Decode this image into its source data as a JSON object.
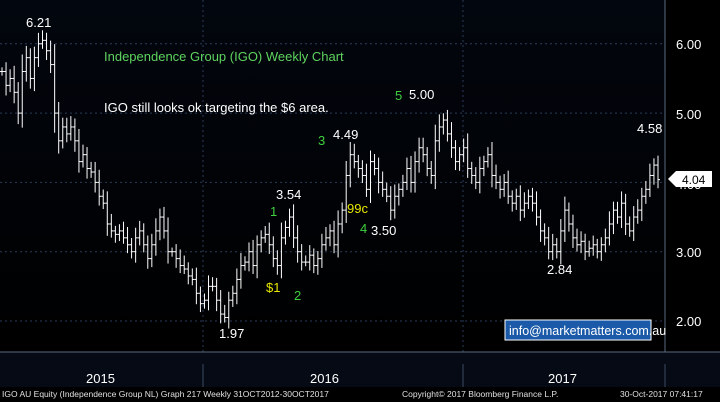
{
  "colors": {
    "background": "#000000",
    "price_bars": "#ffffff",
    "title_green": "#5fd35f",
    "wave_green": "#3fcf3f",
    "wave_yellow": "#e8e800",
    "grid": "#2a3c5a",
    "axis_text": "#ffffff",
    "last_price_bg": "#ffffff",
    "last_price_text": "#000000",
    "email_box_bg": "#1a5aa8"
  },
  "chart_data": {
    "type": "ohlc",
    "title": "Independence Group (IGO) Weekly Chart",
    "subtitle": "IGO still looks ok targeting the $6 area.",
    "yticks": [
      "2.00",
      "3.00",
      "4.00",
      "5.00",
      "6.00"
    ],
    "ylim": [
      1.55,
      6.6
    ],
    "xticks": [
      "2015",
      "2016",
      "2017"
    ],
    "last_price": "4.04",
    "grid": true,
    "bar_closes": [
      5.6,
      5.4,
      5.5,
      5.3,
      5.0,
      5.6,
      5.8,
      5.5,
      5.8,
      6.0,
      6.05,
      5.9,
      5.7,
      5.0,
      4.6,
      4.8,
      4.7,
      4.8,
      4.6,
      4.3,
      4.4,
      4.2,
      4.15,
      4.0,
      3.8,
      3.7,
      3.4,
      3.3,
      3.25,
      3.3,
      3.2,
      3.1,
      3.0,
      3.2,
      3.3,
      3.1,
      2.9,
      3.1,
      3.3,
      3.5,
      3.3,
      3.0,
      3.0,
      2.9,
      2.8,
      2.75,
      2.65,
      2.6,
      2.4,
      2.25,
      2.3,
      2.5,
      2.5,
      2.3,
      2.1,
      2.05,
      2.3,
      2.4,
      2.6,
      2.8,
      2.85,
      3.0,
      2.8,
      3.1,
      3.2,
      3.25,
      3.1,
      2.9,
      2.8,
      3.2,
      3.35,
      3.5,
      3.2,
      3.0,
      2.85,
      2.85,
      2.95,
      2.8,
      2.9,
      3.1,
      3.2,
      3.3,
      3.1,
      3.4,
      3.6,
      4.1,
      4.4,
      4.3,
      4.2,
      4.1,
      3.9,
      4.3,
      4.2,
      4.0,
      3.9,
      3.8,
      3.6,
      3.8,
      3.9,
      4.0,
      4.2,
      4.0,
      4.3,
      4.5,
      4.4,
      4.2,
      4.1,
      4.6,
      4.8,
      4.9,
      4.7,
      4.5,
      4.3,
      4.4,
      4.5,
      4.2,
      4.1,
      4.0,
      4.2,
      4.3,
      4.4,
      4.1,
      4.0,
      3.9,
      4.0,
      3.8,
      3.7,
      3.8,
      3.6,
      3.7,
      3.8,
      3.7,
      3.5,
      3.3,
      3.2,
      3.0,
      3.1,
      3.0,
      3.3,
      3.6,
      3.4,
      3.2,
      3.1,
      3.15,
      3.0,
      3.05,
      3.1,
      3.0,
      3.1,
      3.2,
      3.4,
      3.6,
      3.5,
      3.7,
      3.4,
      3.3,
      3.5,
      3.6,
      3.8,
      3.9,
      4.1,
      4.25,
      4.04
    ],
    "annotations": [
      {
        "text": "6.21",
        "value": 6.21,
        "kind": "price"
      },
      {
        "text": "3.54",
        "value": 3.54,
        "kind": "price"
      },
      {
        "text": "1.97",
        "value": 1.97,
        "kind": "price"
      },
      {
        "text": "4.49",
        "value": 4.49,
        "kind": "price"
      },
      {
        "text": "3.50",
        "value": 3.5,
        "kind": "price"
      },
      {
        "text": "5.00",
        "value": 5.0,
        "kind": "price"
      },
      {
        "text": "2.84",
        "value": 2.84,
        "kind": "price"
      },
      {
        "text": "4.58",
        "value": 4.58,
        "kind": "price"
      },
      {
        "text": "1",
        "kind": "wave",
        "color": "green"
      },
      {
        "text": "$1",
        "kind": "wave",
        "color": "yellow"
      },
      {
        "text": "2",
        "kind": "wave",
        "color": "green"
      },
      {
        "text": "3",
        "kind": "wave",
        "color": "green"
      },
      {
        "text": "99c",
        "kind": "wave",
        "color": "yellow"
      },
      {
        "text": "4",
        "kind": "wave",
        "color": "green"
      },
      {
        "text": "5",
        "kind": "wave",
        "color": "green"
      }
    ]
  },
  "email": "info@marketmatters.com.au",
  "footer": {
    "left": "IGO AU Equity (Independence Group NL) Graph 217  Weekly 31OCT2012-30OCT2017",
    "center": "Copyright© 2017 Bloomberg Finance L.P.",
    "right": "30-Oct-2017 07:41:17"
  }
}
